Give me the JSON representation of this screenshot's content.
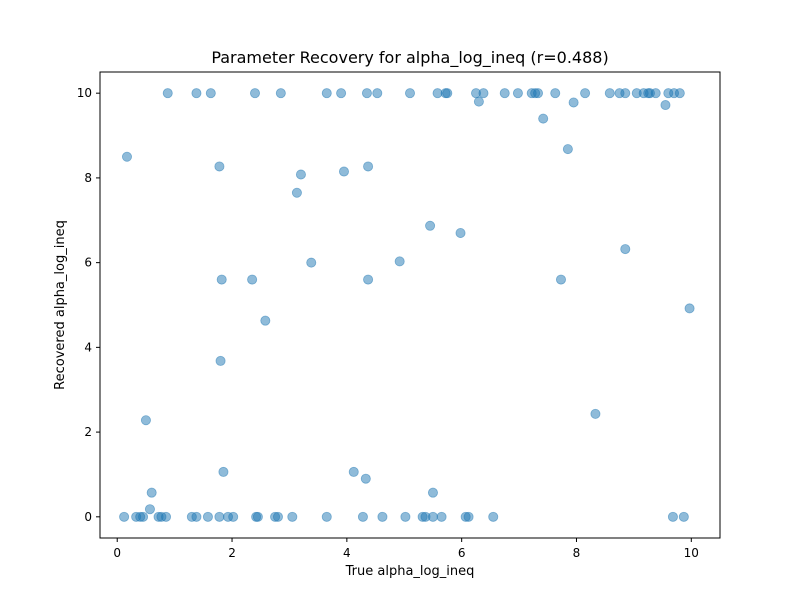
{
  "chart_data": {
    "type": "scatter",
    "title": "Parameter Recovery for alpha_log_ineq (r=0.488)",
    "xlabel": "True alpha_log_ineq",
    "ylabel": "Recovered alpha_log_ineq",
    "xlim": [
      -0.3,
      10.5
    ],
    "ylim": [
      -0.5,
      10.5
    ],
    "xticks": [
      0,
      2,
      4,
      6,
      8,
      10
    ],
    "yticks": [
      0,
      2,
      4,
      6,
      8,
      10
    ],
    "grid": false,
    "point_color": "#1f77b4",
    "point_alpha": 0.5,
    "points": [
      [
        0.12,
        0.0
      ],
      [
        0.33,
        0.0
      ],
      [
        0.4,
        0.0
      ],
      [
        0.45,
        0.0
      ],
      [
        0.72,
        0.0
      ],
      [
        0.77,
        0.0
      ],
      [
        0.85,
        0.0
      ],
      [
        1.3,
        0.0
      ],
      [
        1.38,
        0.0
      ],
      [
        1.58,
        0.0
      ],
      [
        1.78,
        0.0
      ],
      [
        1.93,
        0.0
      ],
      [
        2.02,
        0.0
      ],
      [
        2.42,
        0.0
      ],
      [
        2.45,
        0.0
      ],
      [
        2.75,
        0.0
      ],
      [
        2.8,
        0.0
      ],
      [
        3.05,
        0.0
      ],
      [
        3.65,
        0.0
      ],
      [
        4.28,
        0.0
      ],
      [
        4.62,
        0.0
      ],
      [
        5.02,
        0.0
      ],
      [
        5.32,
        0.0
      ],
      [
        5.37,
        0.0
      ],
      [
        5.5,
        0.0
      ],
      [
        5.65,
        0.0
      ],
      [
        6.07,
        0.0
      ],
      [
        6.12,
        0.0
      ],
      [
        6.55,
        0.0
      ],
      [
        9.68,
        0.0
      ],
      [
        9.87,
        0.0
      ],
      [
        0.57,
        0.18
      ],
      [
        0.6,
        0.57
      ],
      [
        1.85,
        1.06
      ],
      [
        4.12,
        1.06
      ],
      [
        4.33,
        0.9
      ],
      [
        5.5,
        0.57
      ],
      [
        0.5,
        2.28
      ],
      [
        1.8,
        3.68
      ],
      [
        2.58,
        4.63
      ],
      [
        1.82,
        5.6
      ],
      [
        2.35,
        5.6
      ],
      [
        3.38,
        6.0
      ],
      [
        4.37,
        5.6
      ],
      [
        4.92,
        6.03
      ],
      [
        5.45,
        6.87
      ],
      [
        5.98,
        6.7
      ],
      [
        7.73,
        5.6
      ],
      [
        8.33,
        2.43
      ],
      [
        8.85,
        6.32
      ],
      [
        9.97,
        4.92
      ],
      [
        0.17,
        8.5
      ],
      [
        1.78,
        8.27
      ],
      [
        3.13,
        7.65
      ],
      [
        3.2,
        8.08
      ],
      [
        3.95,
        8.15
      ],
      [
        4.37,
        8.27
      ],
      [
        7.85,
        8.68
      ],
      [
        0.88,
        10.0
      ],
      [
        1.38,
        10.0
      ],
      [
        1.63,
        10.0
      ],
      [
        2.4,
        10.0
      ],
      [
        2.85,
        10.0
      ],
      [
        3.65,
        10.0
      ],
      [
        3.9,
        10.0
      ],
      [
        4.35,
        10.0
      ],
      [
        4.53,
        10.0
      ],
      [
        5.1,
        10.0
      ],
      [
        5.58,
        10.0
      ],
      [
        5.72,
        10.0
      ],
      [
        5.75,
        10.0
      ],
      [
        6.25,
        10.0
      ],
      [
        6.3,
        9.8
      ],
      [
        6.38,
        10.0
      ],
      [
        6.75,
        10.0
      ],
      [
        6.98,
        10.0
      ],
      [
        7.22,
        10.0
      ],
      [
        7.28,
        10.0
      ],
      [
        7.33,
        10.0
      ],
      [
        7.42,
        9.4
      ],
      [
        7.63,
        10.0
      ],
      [
        7.95,
        9.78
      ],
      [
        8.15,
        10.0
      ],
      [
        8.58,
        10.0
      ],
      [
        8.75,
        10.0
      ],
      [
        8.85,
        10.0
      ],
      [
        9.05,
        10.0
      ],
      [
        9.17,
        10.0
      ],
      [
        9.25,
        10.0
      ],
      [
        9.28,
        10.0
      ],
      [
        9.38,
        10.0
      ],
      [
        9.55,
        9.72
      ],
      [
        9.6,
        10.0
      ],
      [
        9.7,
        10.0
      ],
      [
        9.8,
        10.0
      ]
    ]
  }
}
